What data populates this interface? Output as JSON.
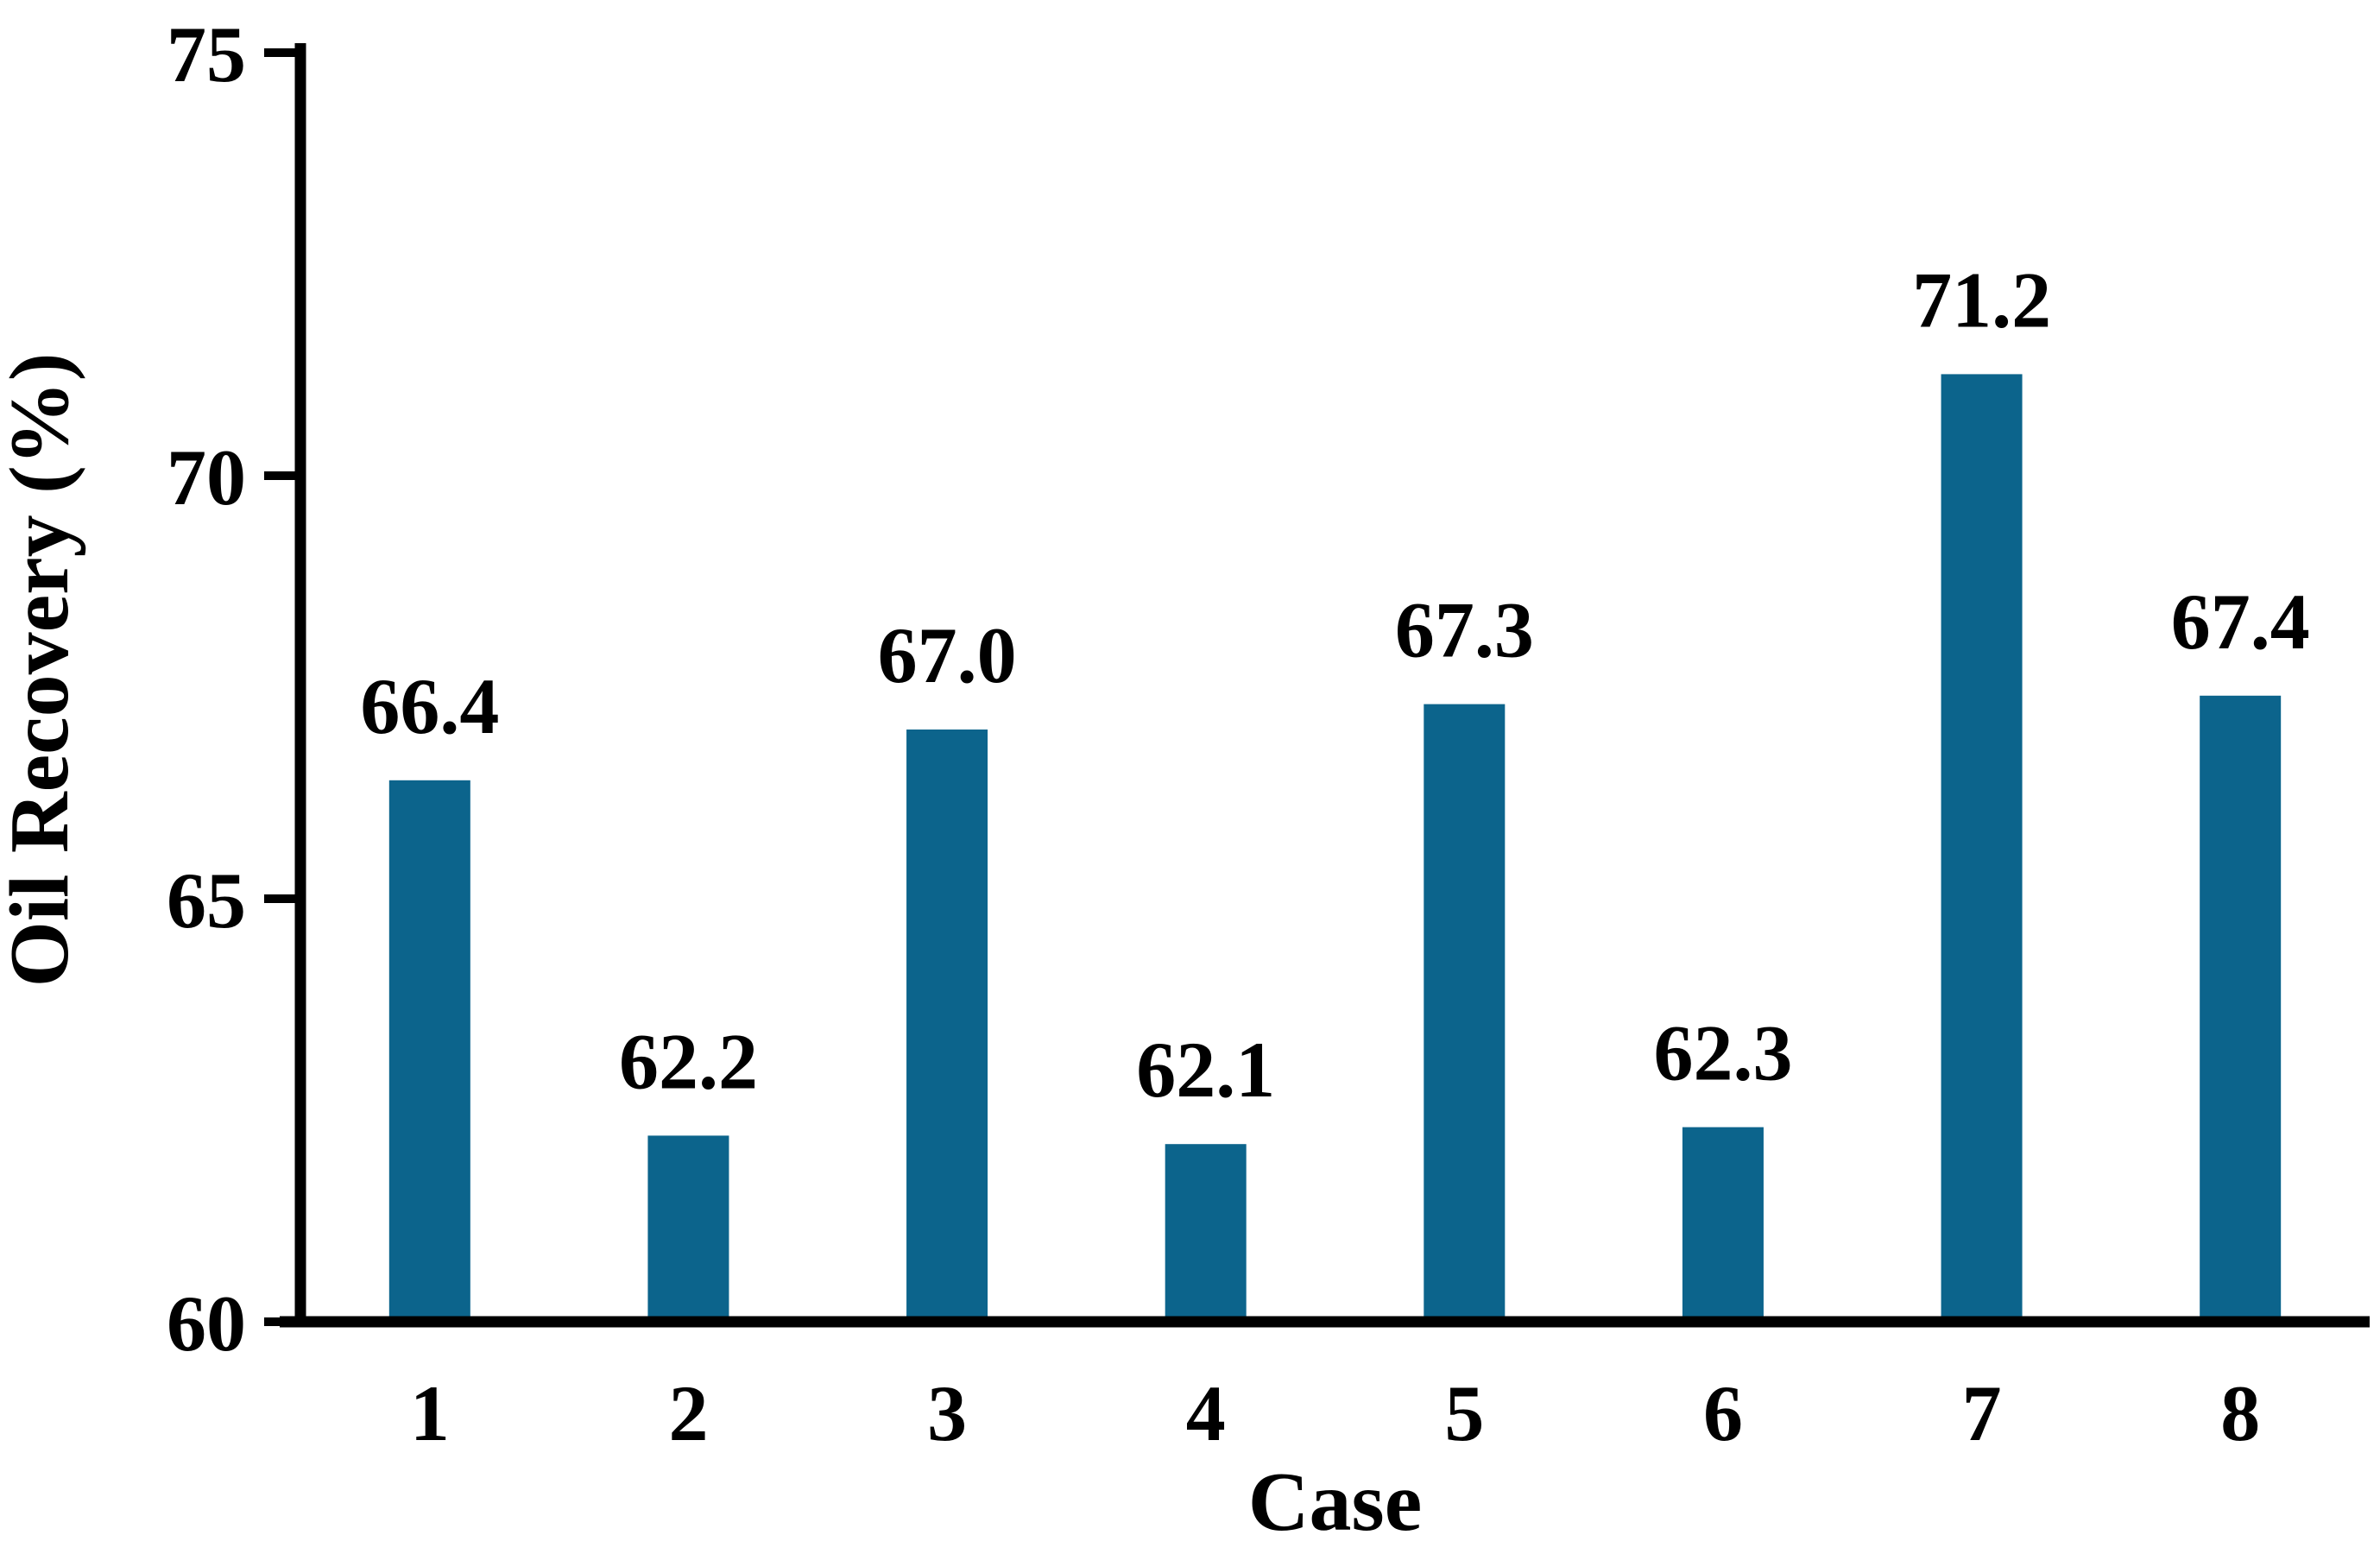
{
  "figure": {
    "background": "#ffffff",
    "bar_color": "#0c648c",
    "axis_color": "#000000",
    "text_color": "#000000"
  },
  "chart_data": {
    "type": "bar",
    "categories": [
      "1",
      "2",
      "3",
      "4",
      "5",
      "6",
      "7",
      "8"
    ],
    "values": [
      66.4,
      62.2,
      67.0,
      62.1,
      67.3,
      62.3,
      71.2,
      67.4
    ],
    "value_labels": [
      "66.4",
      "62.2",
      "67.0",
      "62.1",
      "67.3",
      "62.3",
      "71.2",
      "67.4"
    ],
    "xlabel": "Case",
    "ylabel": "Oil Recovery (%)",
    "ylim": [
      60,
      75
    ],
    "yticks": [
      60,
      65,
      70,
      75
    ],
    "ytick_labels": [
      "60",
      "65",
      "70",
      "75"
    ],
    "grid": false,
    "legend": null,
    "bar_labels_position": "above"
  }
}
